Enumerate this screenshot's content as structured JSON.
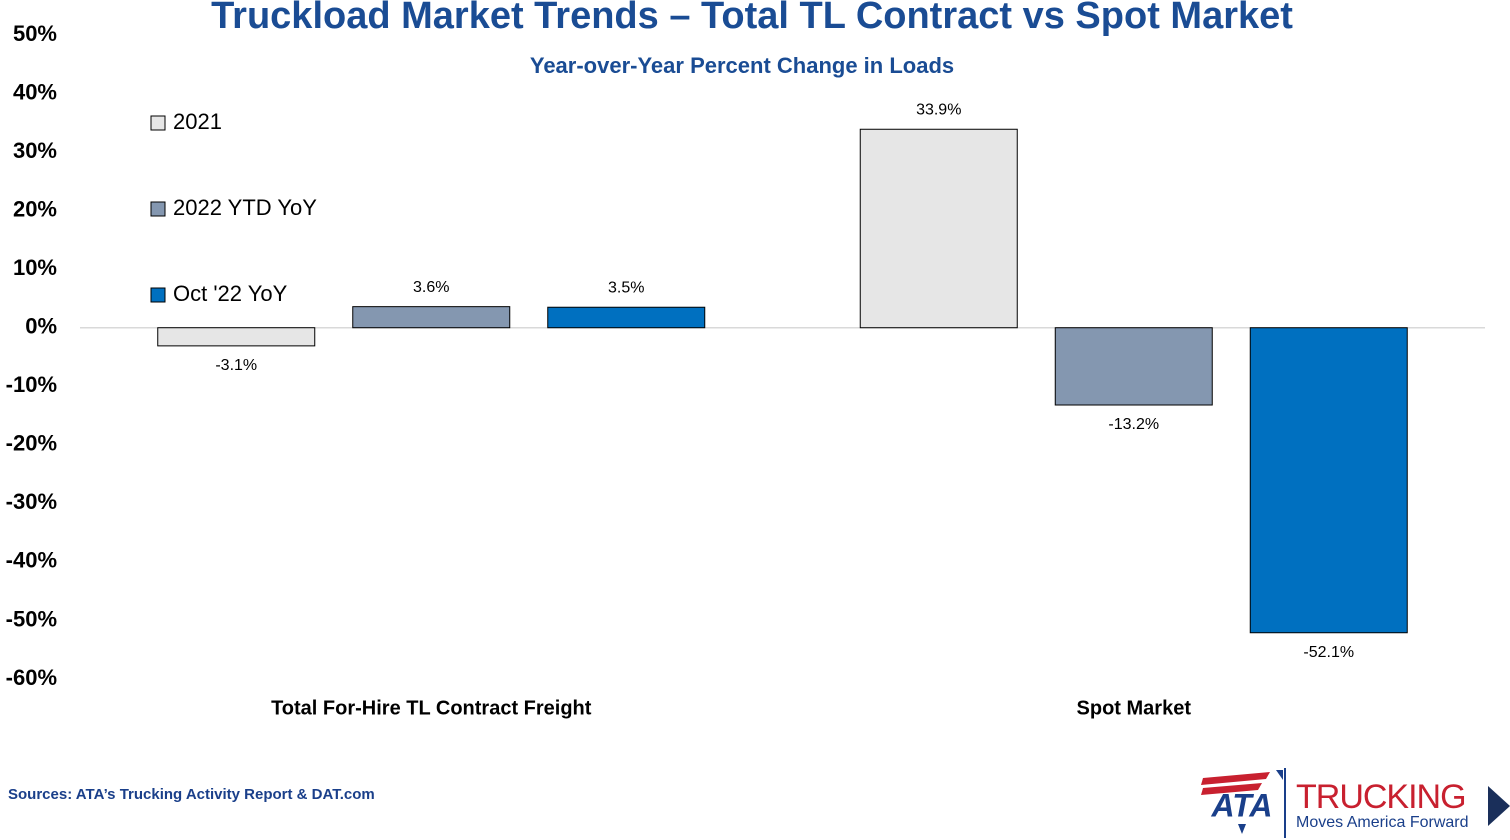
{
  "chart_data": {
    "type": "bar",
    "title": "Truckload Market Trends – Total TL Contract vs Spot Market",
    "subtitle": "Year-over-Year Percent Change in Loads",
    "categories": [
      "Total For-Hire TL Contract Freight",
      "Spot Market"
    ],
    "series": [
      {
        "name": "2021",
        "color": "#e6e6e6",
        "values": [
          -3.1,
          33.9
        ],
        "value_labels": [
          "-3.1%",
          "33.9%"
        ]
      },
      {
        "name": "2022 YTD YoY",
        "color": "#8497b0",
        "values": [
          3.6,
          -13.2
        ],
        "value_labels": [
          "3.6%",
          "-13.2%"
        ]
      },
      {
        "name": "Oct '22 YoY",
        "color": "#0070c0",
        "values": [
          3.5,
          -52.1
        ],
        "value_labels": [
          "3.5%",
          "-52.1%"
        ]
      }
    ],
    "ylim": [
      -60,
      50
    ],
    "yticks": [
      {
        "value": 50,
        "label": "50%"
      },
      {
        "value": 40,
        "label": "40%"
      },
      {
        "value": 30,
        "label": "30%"
      },
      {
        "value": 20,
        "label": "20%"
      },
      {
        "value": 10,
        "label": "10%"
      },
      {
        "value": 0,
        "label": "0%"
      },
      {
        "value": -10,
        "label": "-10%"
      },
      {
        "value": -20,
        "label": "-20%"
      },
      {
        "value": -30,
        "label": "-30%"
      },
      {
        "value": -40,
        "label": "-40%"
      },
      {
        "value": -50,
        "label": "-50%"
      },
      {
        "value": -60,
        "label": "-60%"
      }
    ],
    "grid": false,
    "legend": "upper left"
  },
  "footer": {
    "source": "Sources: ATA’s Trucking Activity Report & DAT.com",
    "logo": {
      "mark": "ATA",
      "name": "TRUCKING",
      "tagline": "Moves America Forward"
    }
  }
}
